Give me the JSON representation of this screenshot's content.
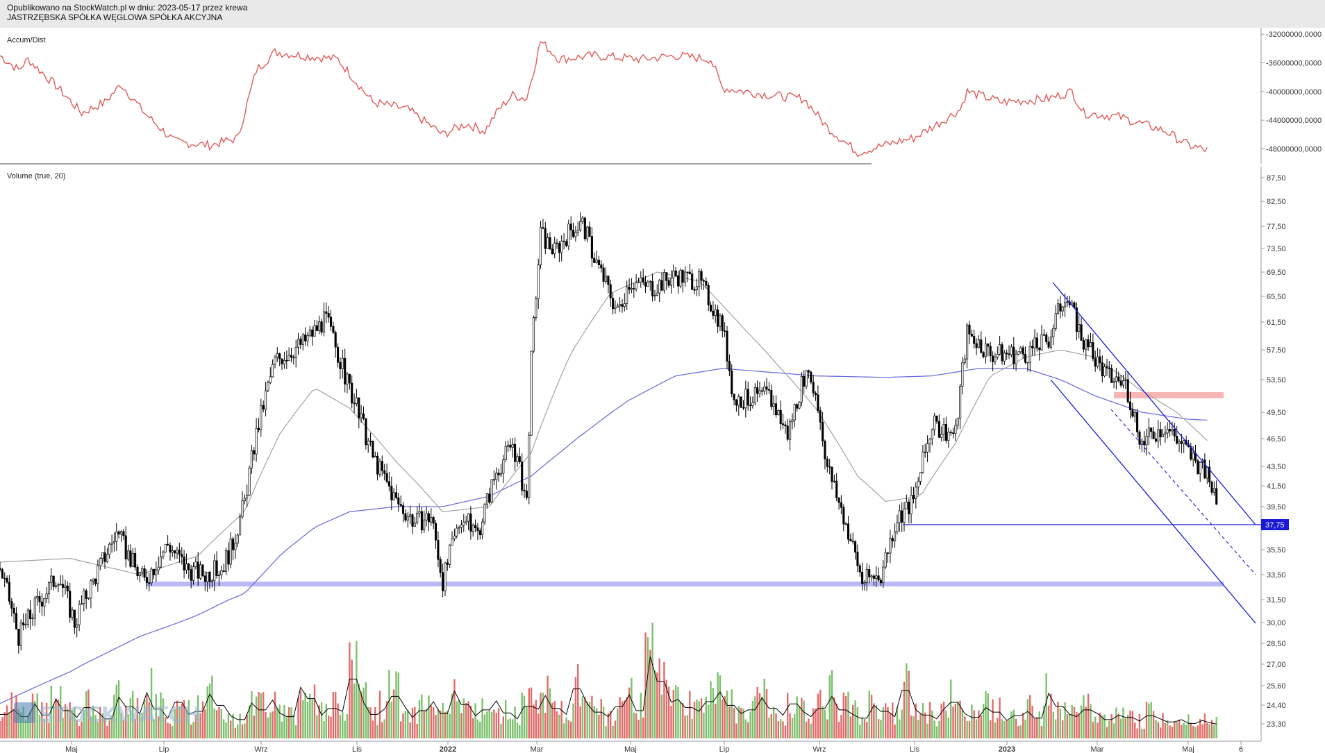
{
  "header": {
    "line1": "Opublikowano na StockWatch.pl w dniu: 2023-05-17 przez krewa",
    "line2": "JASTRZĘBSKA SPÓŁKA WĘGLOWA SPÓŁKA AKCYJNA"
  },
  "watermark": "STOCKWATCH",
  "colors": {
    "accum": "#e05a5a",
    "candle": "#000000",
    "ma_short": "#9a9a9a",
    "ma_long": "#6f6fe0",
    "vol_up": "#7cc06c",
    "vol_down": "#e36a6a",
    "vol_avg": "#000000",
    "support": "#b9b9f5",
    "resistance": "#f7b6b6",
    "channel": "#1a1ad6",
    "price_tag": "#1a1ad6"
  },
  "chart_data": [
    {
      "type": "line",
      "title": "Accum/Dist",
      "y_ticks": [
        "-32000000,0000",
        "-36000000,0000",
        "-40000000,0000",
        "-44000000,0000",
        "-48000000,0000"
      ],
      "ylim": [
        -49500000,
        -31500000
      ],
      "x_range": [
        0,
        520
      ],
      "series": [
        {
          "values_at_x": [
            [
              0,
              -35000000
            ],
            [
              8,
              -37000000
            ],
            [
              12,
              -35500000
            ],
            [
              25,
              -39500000
            ],
            [
              35,
              -43000000
            ],
            [
              45,
              -41500000
            ],
            [
              52,
              -39000000
            ],
            [
              62,
              -43000000
            ],
            [
              75,
              -47000000
            ],
            [
              90,
              -47500000
            ],
            [
              102,
              -46500000
            ],
            [
              110,
              -37000000
            ],
            [
              118,
              -34500000
            ],
            [
              130,
              -35000000
            ],
            [
              145,
              -35500000
            ],
            [
              160,
              -41500000
            ],
            [
              175,
              -42500000
            ],
            [
              190,
              -46000000
            ],
            [
              200,
              -44500000
            ],
            [
              208,
              -45500000
            ],
            [
              214,
              -42500000
            ],
            [
              220,
              -40500000
            ],
            [
              226,
              -41000000
            ],
            [
              232,
              -33000000
            ],
            [
              240,
              -35500000
            ],
            [
              255,
              -35000000
            ],
            [
              275,
              -35500000
            ],
            [
              290,
              -35000000
            ],
            [
              305,
              -35500000
            ],
            [
              310,
              -39500000
            ],
            [
              330,
              -40500000
            ],
            [
              345,
              -41000000
            ],
            [
              355,
              -45000000
            ],
            [
              368,
              -48500000
            ],
            [
              385,
              -47000000
            ],
            [
              392,
              -46500000
            ],
            [
              405,
              -44000000
            ],
            [
              412,
              -42500000
            ],
            [
              415,
              -40000000
            ],
            [
              430,
              -41500000
            ],
            [
              450,
              -41000000
            ],
            [
              460,
              -40000000
            ],
            [
              465,
              -43000000
            ],
            [
              480,
              -43500000
            ],
            [
              500,
              -45500000
            ],
            [
              510,
              -47500000
            ],
            [
              518,
              -48200000
            ]
          ]
        }
      ]
    },
    {
      "type": "candlestick",
      "title": "Volume (true, 20)",
      "y_ticks": [
        "87,50",
        "82,50",
        "77,50",
        "73,50",
        "69,50",
        "65,50",
        "61,50",
        "57,50",
        "53,50",
        "49,50",
        "46,50",
        "43,50",
        "41,50",
        "39,50",
        "37,75",
        "35,50",
        "33,50",
        "31,50",
        "30,00",
        "28,50",
        "27,00",
        "25,60",
        "24,40",
        "23,30"
      ],
      "x_ticks": [
        "Maj",
        "Lip",
        "Wrz",
        "Lis",
        "2022",
        "Mar",
        "Maj",
        "Lip",
        "Wrz",
        "Lis",
        "2023",
        "Mar",
        "Maj",
        "6"
      ],
      "price_label": "37,75",
      "series": [
        {
          "name": "close",
          "values_at_x": [
            [
              0,
              34.0
            ],
            [
              8,
              29.0
            ],
            [
              15,
              31.0
            ],
            [
              25,
              33.5
            ],
            [
              32,
              30.0
            ],
            [
              40,
              33.0
            ],
            [
              50,
              37.0
            ],
            [
              58,
              34.0
            ],
            [
              62,
              33.0
            ],
            [
              72,
              36.0
            ],
            [
              80,
              34.0
            ],
            [
              88,
              33.5
            ],
            [
              95,
              34.0
            ],
            [
              100,
              36.0
            ],
            [
              105,
              40.0
            ],
            [
              110,
              47.0
            ],
            [
              118,
              56.0
            ],
            [
              130,
              58.5
            ],
            [
              140,
              62.0
            ],
            [
              148,
              54.0
            ],
            [
              160,
              44.5
            ],
            [
              170,
              40.0
            ],
            [
              178,
              38.0
            ],
            [
              185,
              38.5
            ],
            [
              190,
              33.0
            ],
            [
              198,
              38.5
            ],
            [
              205,
              37.0
            ],
            [
              213,
              43.0
            ],
            [
              220,
              46.0
            ],
            [
              226,
              40.0
            ],
            [
              228,
              56.0
            ],
            [
              232,
              76.0
            ],
            [
              238,
              73.0
            ],
            [
              245,
              77.0
            ],
            [
              250,
              78.0
            ],
            [
              255,
              72.0
            ],
            [
              265,
              63.0
            ],
            [
              270,
              68.0
            ],
            [
              280,
              67.0
            ],
            [
              290,
              69.0
            ],
            [
              300,
              68.0
            ],
            [
              310,
              61.0
            ],
            [
              315,
              51.0
            ],
            [
              330,
              51.5
            ],
            [
              338,
              47.0
            ],
            [
              345,
              54.0
            ],
            [
              350,
              52.0
            ],
            [
              355,
              43.5
            ],
            [
              362,
              38.5
            ],
            [
              370,
              33.0
            ],
            [
              378,
              33.5
            ],
            [
              385,
              38.5
            ],
            [
              392,
              40.0
            ],
            [
              400,
              48.0
            ],
            [
              410,
              47.0
            ],
            [
              415,
              60.0
            ],
            [
              425,
              57.0
            ],
            [
              440,
              57.0
            ],
            [
              450,
              59.0
            ],
            [
              457,
              66.0
            ],
            [
              465,
              58.5
            ],
            [
              475,
              54.0
            ],
            [
              483,
              53.0
            ],
            [
              490,
              46.0
            ],
            [
              500,
              48.0
            ],
            [
              510,
              45.0
            ],
            [
              518,
              42.5
            ],
            [
              522,
              40.5
            ]
          ]
        },
        {
          "name": "MA short (gray)",
          "values_at_x": [
            [
              0,
              34.5
            ],
            [
              30,
              34.8
            ],
            [
              60,
              33.5
            ],
            [
              85,
              35.0
            ],
            [
              105,
              39.0
            ],
            [
              120,
              47.0
            ],
            [
              135,
              52.5
            ],
            [
              150,
              50.0
            ],
            [
              170,
              44.0
            ],
            [
              190,
              39.0
            ],
            [
              210,
              39.5
            ],
            [
              228,
              45.0
            ],
            [
              245,
              57.0
            ],
            [
              262,
              66.0
            ],
            [
              282,
              69.5
            ],
            [
              300,
              68.0
            ],
            [
              318,
              61.0
            ],
            [
              335,
              55.0
            ],
            [
              350,
              50.0
            ],
            [
              368,
              42.5
            ],
            [
              380,
              40.0
            ],
            [
              395,
              40.5
            ],
            [
              410,
              46.0
            ],
            [
              425,
              54.0
            ],
            [
              440,
              56.5
            ],
            [
              455,
              57.5
            ],
            [
              470,
              56.5
            ],
            [
              488,
              52.5
            ],
            [
              505,
              49.5
            ],
            [
              518,
              46.3
            ]
          ]
        },
        {
          "name": "MA long (blue)",
          "values_at_x": [
            [
              0,
              24.5
            ],
            [
              30,
              26.5
            ],
            [
              60,
              29.0
            ],
            [
              85,
              30.5
            ],
            [
              105,
              32.0
            ],
            [
              120,
              35.0
            ],
            [
              135,
              37.5
            ],
            [
              150,
              39.0
            ],
            [
              170,
              39.5
            ],
            [
              190,
              39.5
            ],
            [
              210,
              40.5
            ],
            [
              228,
              42.5
            ],
            [
              250,
              47.0
            ],
            [
              270,
              51.0
            ],
            [
              290,
              54.0
            ],
            [
              310,
              55.0
            ],
            [
              330,
              54.5
            ],
            [
              350,
              54.0
            ],
            [
              380,
              53.8
            ],
            [
              400,
              54.0
            ],
            [
              420,
              55.0
            ],
            [
              440,
              55.0
            ],
            [
              455,
              53.5
            ],
            [
              470,
              51.5
            ],
            [
              490,
              49.5
            ],
            [
              510,
              48.7
            ],
            [
              518,
              48.6
            ]
          ]
        },
        {
          "name": "volume",
          "values": [
            3.2,
            3.8,
            2.9,
            4.6,
            3.1,
            5.2,
            3.7,
            2.8,
            4.1,
            3.5,
            2.6,
            5.5,
            4.2,
            3.3,
            6.1,
            3.9,
            2.7,
            4.8,
            3.2,
            3.6,
            5.9,
            4.4,
            3.0,
            2.5,
            4.7,
            3.8,
            5.1,
            3.4,
            2.9,
            6.8,
            5.3,
            3.1,
            4.0,
            3.6,
            7.9,
            4.8,
            3.2,
            3.9,
            5.6,
            4.1,
            2.8,
            3.7,
            4.9,
            3.3,
            6.3,
            4.5,
            3.0,
            3.8,
            5.0,
            3.4,
            2.6,
            4.3,
            3.9,
            5.7,
            4.0,
            3.2,
            6.6,
            4.6,
            3.5,
            2.9,
            4.2,
            5.8,
            3.7,
            10.9,
            7.6,
            4.8,
            5.2,
            4.1,
            3.6,
            4.9,
            6.2,
            4.4,
            3.3,
            3.8,
            5.4,
            4.0,
            3.1,
            4.6,
            3.5,
            2.9,
            4.0,
            5.6,
            3.8,
            3.2,
            2.7,
            4.4,
            3.6,
            2.9,
            6.4,
            3.8,
            3.1,
            2.6,
            3.9,
            4.8,
            3.3,
            2.8,
            4.1,
            3.5,
            2.4,
            3.0,
            3.6,
            2.7,
            6.0,
            4.3,
            3.2,
            2.9,
            3.8,
            3.3,
            2.5,
            3.1,
            2.8,
            2.3,
            3.0,
            2.6,
            2.2,
            2.5,
            2.0,
            2.4,
            2.1,
            1.9
          ]
        }
      ]
    }
  ]
}
